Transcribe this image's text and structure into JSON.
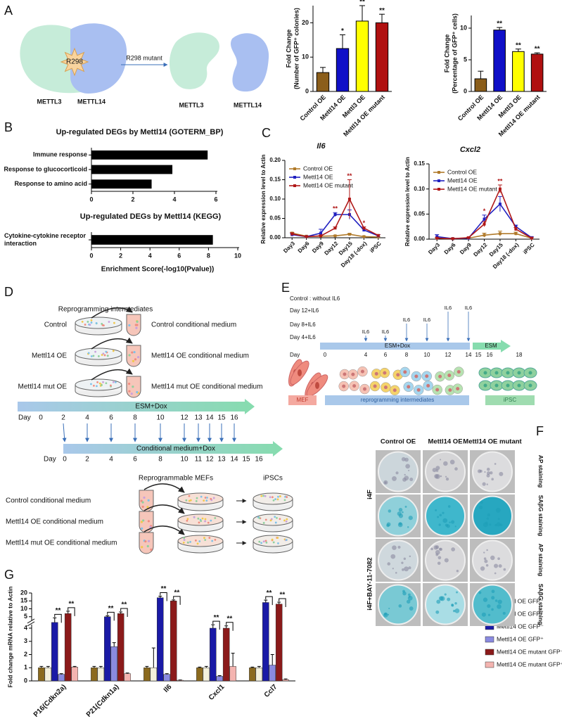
{
  "panel_labels": [
    "A",
    "B",
    "C",
    "D",
    "E",
    "F",
    "G"
  ],
  "diagram_a": {
    "site": "R298",
    "complex": [
      "METTL3",
      "METTL14"
    ],
    "arrow": "R298 mutant",
    "separated": [
      "METTL3",
      "METTL14"
    ]
  },
  "chart_data": [
    {
      "type": "bar",
      "ylabel": [
        "Fold Change",
        "(Number of GFP⁺ colonies)"
      ],
      "categories": [
        "Control OE",
        "Mettl14 OE",
        "Mettl3 OE",
        "Mettl14 OE mutant"
      ],
      "values": [
        5.5,
        12.5,
        20.5,
        20
      ],
      "errors": [
        1.5,
        4,
        4.5,
        2.5
      ],
      "annotations": [
        null,
        "*",
        "**",
        "**"
      ],
      "colors": [
        "#8b5e1a",
        "#1010c8",
        "#ffff00",
        "#b01010"
      ],
      "ylim": [
        0,
        25
      ],
      "yticks": [
        0,
        10,
        20
      ]
    },
    {
      "type": "bar",
      "ylabel": [
        "Fold Change",
        "(Percentage of GFP⁺ cells)"
      ],
      "categories": [
        "Control OE",
        "Mettl14 OE",
        "Mettl3 OE",
        "Mettl14 OE mutant"
      ],
      "values": [
        2,
        9.7,
        6.3,
        5.9
      ],
      "errors": [
        1.2,
        0.4,
        0.4,
        0.2
      ],
      "annotations": [
        null,
        "**",
        "**",
        "**"
      ],
      "colors": [
        "#8b5e1a",
        "#1010c8",
        "#ffff00",
        "#b01010"
      ],
      "ylim": [
        0,
        12
      ],
      "yticks": [
        0,
        5,
        10
      ]
    },
    {
      "type": "bar",
      "orientation": "horizontal",
      "title": "Up-regulated DEGs by Mettl14 (GOTERM_BP)",
      "categories": [
        "Immune response",
        "Response to glucocorticoid",
        "Response to amino acid"
      ],
      "values": [
        5.6,
        3.9,
        2.9
      ],
      "color": "#000000",
      "xlim": [
        0,
        6
      ],
      "xticks": [
        0,
        2,
        4,
        6
      ]
    },
    {
      "type": "bar",
      "orientation": "horizontal",
      "title": "Up-regulated DEGs by Mettl14 (KEGG)",
      "categories": [
        "Cytokine-cytokine receptor interaction"
      ],
      "values": [
        8.3
      ],
      "color": "#000000",
      "xlim": [
        0,
        10
      ],
      "xticks": [
        0,
        2,
        4,
        6,
        8,
        10
      ],
      "xlabel": "Enrichment Score(-log10(Pvalue))"
    },
    {
      "type": "line",
      "title": "Il6",
      "ylabel": "Relative expression level to Actin",
      "categories": [
        "Day3",
        "Day6",
        "Day9",
        "Day12",
        "Day15",
        "Day18 (-dox)",
        "iPSC"
      ],
      "series": [
        {
          "name": "Control OE",
          "color": "#b07a2a",
          "values": [
            0.012,
            0.004,
            0.004,
            0.005,
            0.009,
            0.003,
            0.002
          ],
          "errors": [
            0.002,
            0.001,
            0.001,
            0.001,
            0.002,
            0.001,
            0.001
          ]
        },
        {
          "name": "Mettl14 OE",
          "color": "#2020c0",
          "values": [
            0.008,
            0.003,
            0.012,
            0.06,
            0.06,
            0.02,
            0.005
          ],
          "errors": [
            0.002,
            0.001,
            0.01,
            0.005,
            0.012,
            0.003,
            0.003
          ]
        },
        {
          "name": "Mettl14 OE mutant",
          "color": "#b01818",
          "values": [
            0.01,
            0.003,
            0.005,
            0.025,
            0.1,
            0.025,
            0.006
          ],
          "errors": [
            0.003,
            0.001,
            0.002,
            0.003,
            0.05,
            0.003,
            0.002
          ]
        }
      ],
      "annotations": [
        null,
        null,
        null,
        "**",
        "**",
        "*",
        null
      ],
      "ylim": [
        0,
        0.2
      ],
      "yticks": [
        {
          "value": 0,
          "label": "0.00"
        },
        0.05,
        {
          "value": 0.1,
          "label": "0.10"
        },
        0.15,
        {
          "value": 0.2,
          "label": "0.20"
        }
      ],
      "legend": "upper left"
    },
    {
      "type": "line",
      "title": "Cxcl2",
      "ylabel": "Relative expression level to Actin",
      "categories": [
        "Day3",
        "Day6",
        "Day9",
        "Day12",
        "Day15",
        "Day18 (-dox)",
        "iPSC"
      ],
      "series": [
        {
          "name": "Control OE",
          "color": "#b07a2a",
          "values": [
            0.002,
            0.001,
            0.002,
            0.008,
            0.011,
            0.011,
            0.002
          ],
          "errors": [
            0.001,
            0.001,
            0.001,
            0.004,
            0.005,
            0.003,
            0.001
          ]
        },
        {
          "name": "Mettl14 OE",
          "color": "#2020c0",
          "values": [
            0.005,
            0.001,
            0.002,
            0.04,
            0.07,
            0.025,
            0.003
          ],
          "errors": [
            0.004,
            0.001,
            0.001,
            0.008,
            0.015,
            0.003,
            0.002
          ]
        },
        {
          "name": "Mettl14 OE mutant",
          "color": "#b01818",
          "values": [
            0.002,
            0.001,
            0.003,
            0.03,
            0.1,
            0.02,
            0.002
          ],
          "errors": [
            0.001,
            0.001,
            0.001,
            0.005,
            0.008,
            0.003,
            0.001
          ]
        }
      ],
      "annotations": [
        null,
        null,
        null,
        "*",
        "**",
        null,
        null
      ],
      "ylim": [
        0,
        0.15
      ],
      "yticks": [
        {
          "value": 0,
          "label": "0.00"
        },
        0.05,
        {
          "value": 0.1,
          "label": "0.10"
        },
        0.15
      ],
      "legend": "upper left"
    },
    {
      "type": "bar",
      "ylabel": "Fold change mRNA relative to Actin",
      "categories": [
        "P16(Cdkn2a)",
        "P21(Cdkn1a)",
        "Il6",
        "Cxcl1",
        "Ccl7"
      ],
      "series": [
        {
          "name": "Control OE GFP⁻",
          "color": "#8b6a1e",
          "values": [
            1,
            1,
            1,
            1,
            1
          ],
          "errors": [
            0.1,
            0.1,
            0.1,
            0.05,
            0.05
          ]
        },
        {
          "name": "Control OE GFP⁺",
          "color": "#f3f0dc",
          "values": [
            1,
            1,
            1,
            1,
            1
          ],
          "errors": [
            0.1,
            0.1,
            1.5,
            0.1,
            0.1
          ]
        },
        {
          "name": "Mettl14 OE GFP⁻",
          "color": "#1a1aa6",
          "values": [
            4.5,
            5,
            17,
            4,
            14
          ],
          "errors": [
            0.4,
            0.6,
            1,
            0.3,
            1.5
          ]
        },
        {
          "name": "Mettl14 OE GFP⁺",
          "color": "#8a8ae0",
          "values": [
            0.5,
            2.6,
            0.5,
            0.35,
            1.2
          ],
          "errors": [
            0.05,
            0.3,
            0.05,
            0.05,
            0.8
          ]
        },
        {
          "name": "Mettl14 OE mutant GFP⁻",
          "color": "#8b1a1a",
          "values": [
            7,
            7,
            15,
            4,
            13
          ],
          "errors": [
            1.5,
            1,
            0.6,
            0.2,
            1.2
          ]
        },
        {
          "name": "Mettl14 OE mutant GFP⁺",
          "color": "#f4b4b0",
          "values": [
            1.05,
            0.55,
            0.05,
            1.1,
            0.1
          ],
          "errors": [
            0.05,
            0.05,
            0.02,
            1,
            0.05
          ]
        }
      ],
      "brackets": [
        [
          "**",
          "**"
        ],
        [
          "**",
          "**"
        ],
        [
          "**",
          "**"
        ],
        [
          "**",
          "**"
        ],
        [
          "**",
          "**"
        ]
      ],
      "ylim": [
        0,
        20
      ],
      "ybreak": [
        4,
        5
      ],
      "yticks": [
        0,
        1,
        2,
        3,
        4,
        5,
        10,
        15,
        20
      ]
    }
  ],
  "diagram_d": {
    "top_title": "Reprogramming intermediates",
    "rows": [
      {
        "source": "Control",
        "target": "Control  conditional medium"
      },
      {
        "source": "Mettl14 OE",
        "target": "Mettl14 OE conditional medium"
      },
      {
        "source": "Mettl14 mut OE",
        "target": "Mettl14 mut OE conditional medium"
      }
    ],
    "timeline_1": {
      "label": "ESM+Dox",
      "day": "Day",
      "days": [
        0,
        2,
        4,
        6,
        8,
        10,
        12,
        13,
        14,
        15,
        16
      ]
    },
    "timeline_2": {
      "label": "Conditional medium+Dox",
      "day": "Day",
      "days": [
        0,
        2,
        4,
        6,
        8,
        10,
        11,
        12,
        13,
        14,
        15,
        16
      ]
    },
    "mef_title": "Reprogrammable MEFs",
    "ipsc_title": "iPSCs",
    "media": [
      "Control  conditional medium",
      "Mettl14 OE conditional medium",
      "Mettl14 mut OE conditional medium"
    ]
  },
  "diagram_e": {
    "conditions": [
      "Control : without IL6",
      "Day 12+IL6",
      "Day 8+IL6",
      "Day 4+IL6"
    ],
    "il6": "IL6",
    "day": "Day",
    "days": [
      0,
      4,
      6,
      8,
      10,
      12,
      14,
      15,
      16,
      18
    ],
    "phase_1": "ESM+Dox",
    "phase_2": "ESM",
    "stages": [
      "MEF",
      "reprogramming intermediates",
      "iPSC"
    ]
  },
  "panel_f": {
    "columns": [
      "Control OE",
      "Mettl14 OE",
      "Mettl14 OE mutant"
    ],
    "groups": [
      "i4F",
      "i4F+BAY-11-7082"
    ],
    "rows": [
      "AP staining",
      "SAβG staining",
      "AP staining",
      "SAβG staining"
    ]
  }
}
